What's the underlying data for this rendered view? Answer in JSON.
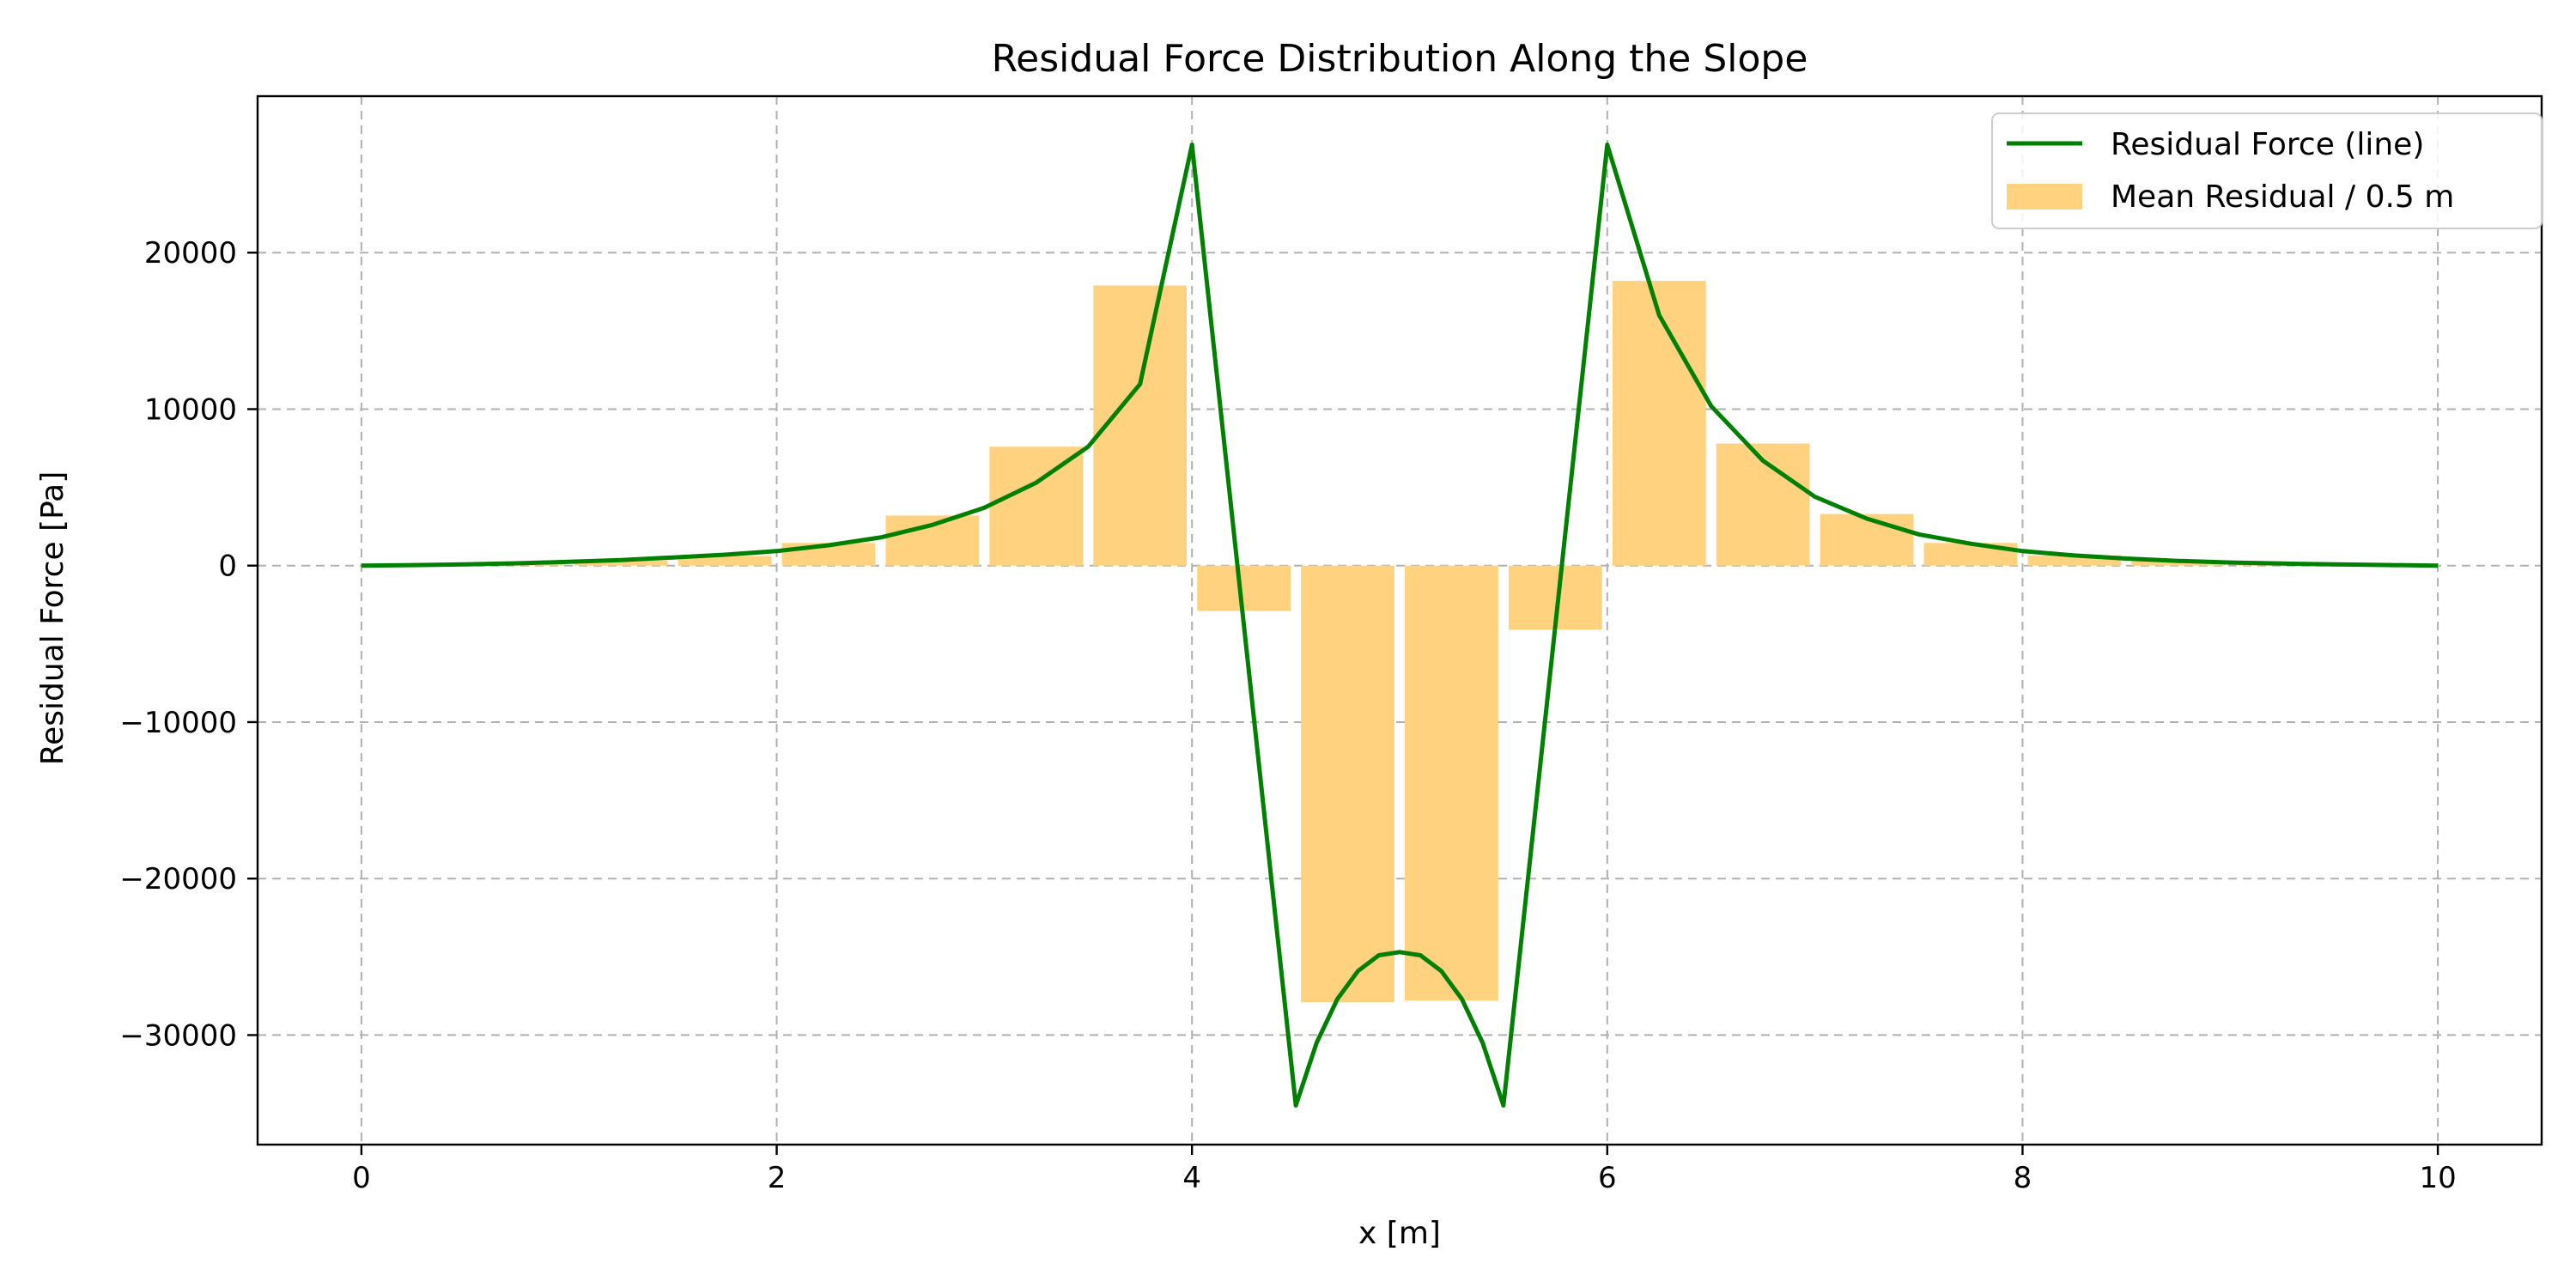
{
  "chart_data": {
    "type": "bar",
    "title": "Residual Force Distribution Along the Slope",
    "xlabel": "x [m]",
    "ylabel": "Residual Force [Pa]",
    "xlim": [
      -0.5,
      10.5
    ],
    "ylim": [
      -37000,
      30000
    ],
    "xticks": [
      0,
      2,
      4,
      6,
      8,
      10
    ],
    "xtick_labels": [
      "0",
      "2",
      "4",
      "6",
      "8",
      "10"
    ],
    "yticks": [
      20000,
      10000,
      0,
      -10000,
      -20000,
      -30000
    ],
    "ytick_labels": [
      "20000",
      "10000",
      "0",
      "−10000",
      "−20000",
      "−30000"
    ],
    "grid": true,
    "legend_position": "top-right",
    "colors": {
      "line": "#008000",
      "bars": "#ffd27f",
      "grid": "#b0b0b0"
    },
    "series": [
      {
        "name": "Residual Force (line)",
        "type": "line",
        "x": [
          0,
          0.25,
          0.5,
          0.75,
          1,
          1.25,
          1.5,
          1.75,
          2,
          2.25,
          2.5,
          2.75,
          3,
          3.25,
          3.5,
          3.75,
          4,
          4.25,
          4.5,
          4.6,
          4.7,
          4.8,
          4.9,
          5,
          5.1,
          5.2,
          5.3,
          5.4,
          5.5,
          5.75,
          6,
          6.25,
          6.5,
          6.75,
          7,
          7.25,
          7.5,
          7.75,
          8,
          8.25,
          8.5,
          8.75,
          9,
          9.25,
          9.5,
          9.75,
          10
        ],
        "y": [
          0,
          35,
          75,
          150,
          240,
          360,
          520,
          700,
          930,
          1300,
          1800,
          2600,
          3700,
          5300,
          7600,
          11600,
          26900,
          -3800,
          -34500,
          -30500,
          -27700,
          -25900,
          -24900,
          -24700,
          -24900,
          -25900,
          -27700,
          -30500,
          -34500,
          -3800,
          26900,
          16000,
          10200,
          6700,
          4400,
          3000,
          2000,
          1400,
          930,
          650,
          450,
          300,
          200,
          130,
          80,
          40,
          0
        ]
      },
      {
        "name": "Mean Residual / 0.5 m",
        "type": "bar",
        "bar_width": 0.45,
        "x": [
          0.25,
          0.75,
          1.25,
          1.75,
          2.25,
          2.75,
          3.25,
          3.75,
          4.25,
          4.75,
          5.25,
          5.75,
          6.25,
          6.75,
          7.25,
          7.75,
          8.25,
          8.75,
          9.25,
          9.75
        ],
        "values": [
          60,
          170,
          330,
          620,
          1450,
          3200,
          7600,
          17900,
          -2900,
          -27900,
          -27800,
          -4100,
          18200,
          7800,
          3300,
          1450,
          650,
          340,
          170,
          60
        ]
      }
    ]
  }
}
